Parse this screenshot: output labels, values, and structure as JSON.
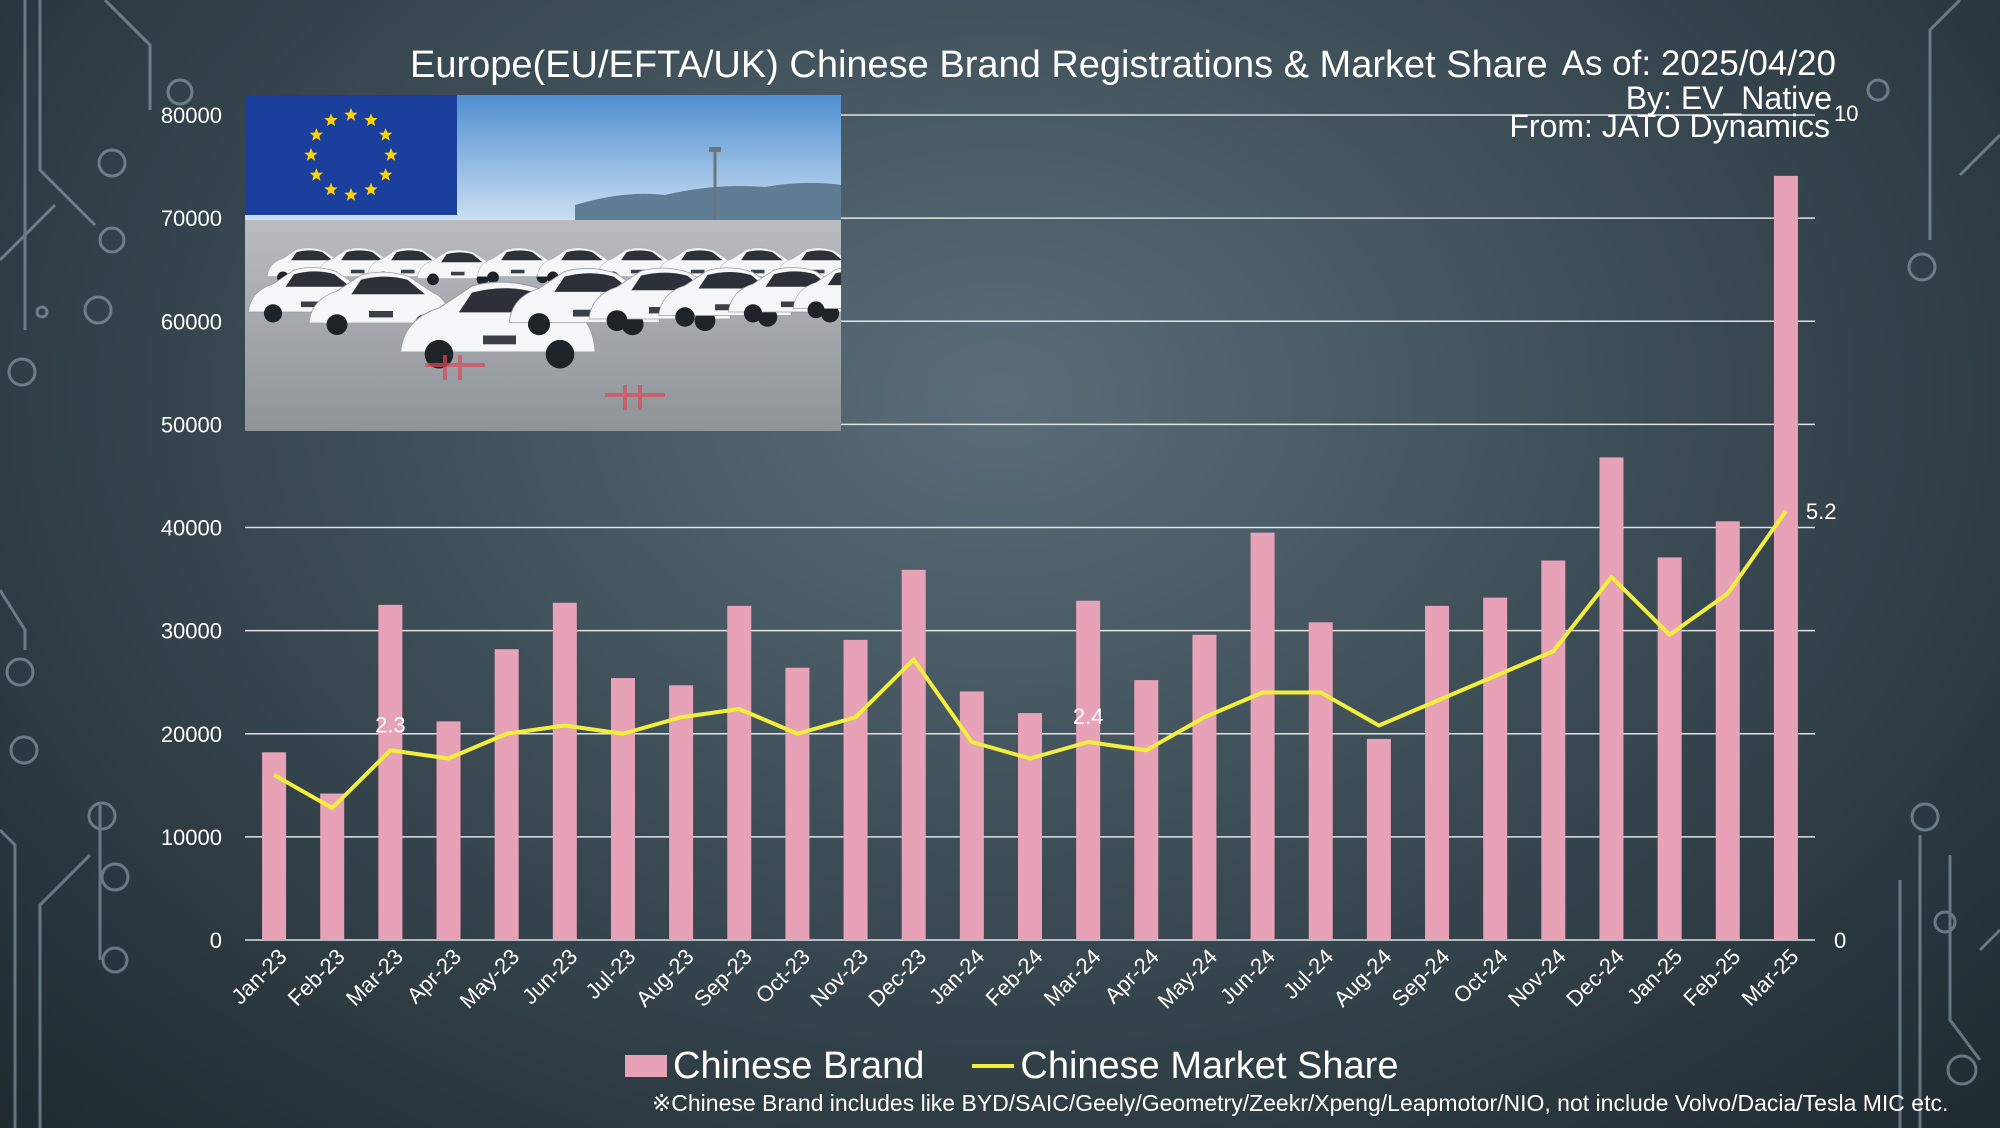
{
  "header": {
    "title": "Europe(EU/EFTA/UK) Chinese Brand Registrations & Market Share",
    "as_of": "As of: 2025/04/20",
    "by": "By: EV_Native",
    "from": "From: JATO Dynamics"
  },
  "image": {
    "description_icons": [
      "eu-flag",
      "car-parking-lot"
    ]
  },
  "chart_data": {
    "type": "bar",
    "categories": [
      "Jan-23",
      "Feb-23",
      "Mar-23",
      "Apr-23",
      "May-23",
      "Jun-23",
      "Jul-23",
      "Aug-23",
      "Sep-23",
      "Oct-23",
      "Nov-23",
      "Dec-23",
      "Jan-24",
      "Feb-24",
      "Mar-24",
      "Apr-24",
      "May-24",
      "Jun-24",
      "Jul-24",
      "Aug-24",
      "Sep-24",
      "Oct-24",
      "Nov-24",
      "Dec-24",
      "Jan-25",
      "Feb-25",
      "Mar-25"
    ],
    "series": [
      {
        "name": "Chinese Brand",
        "type": "bar",
        "axis": "left",
        "color": "#e8a2b7",
        "values": [
          18200,
          14200,
          32500,
          21200,
          28200,
          32700,
          25400,
          24700,
          32400,
          26400,
          29100,
          35900,
          24100,
          22000,
          32900,
          25200,
          29600,
          39500,
          30800,
          19500,
          32400,
          33200,
          36800,
          46800,
          37100,
          40600,
          74100
        ]
      },
      {
        "name": "Chinese Market Share",
        "type": "line",
        "axis": "right",
        "color": "#f1ef3c",
        "values": [
          2.0,
          1.6,
          2.3,
          2.2,
          2.5,
          2.6,
          2.5,
          2.7,
          2.8,
          2.5,
          2.7,
          3.4,
          2.4,
          2.2,
          2.4,
          2.3,
          2.7,
          3.0,
          3.0,
          2.6,
          2.9,
          3.2,
          3.5,
          4.4,
          3.7,
          4.2,
          5.2
        ]
      }
    ],
    "data_labels": [
      {
        "series": "Chinese Market Share",
        "category": "Mar-23",
        "text": "2.3"
      },
      {
        "series": "Chinese Market Share",
        "category": "Mar-24",
        "text": "2.4"
      },
      {
        "series": "Chinese Market Share",
        "category": "Mar-25",
        "text": "5.2"
      }
    ],
    "y_left": {
      "min": 0,
      "max": 80000,
      "ticks": [
        "0",
        "10000",
        "20000",
        "30000",
        "40000",
        "50000",
        "60000",
        "70000",
        "80000"
      ]
    },
    "y_right": {
      "min": 0,
      "max": 10,
      "ticks": [
        "0",
        "10"
      ]
    },
    "grid": true,
    "legend": "bottom"
  },
  "legend": {
    "bar_label": "Chinese Brand",
    "line_label": "Chinese Market Share"
  },
  "footnote": "※Chinese Brand includes like BYD/SAIC/Geely/Geometry/Zeekr/Xpeng/Leapmotor/NIO, not include Volvo/Dacia/Tesla MIC etc."
}
